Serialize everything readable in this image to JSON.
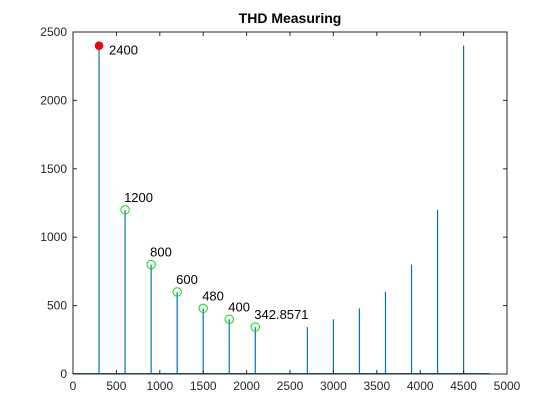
{
  "chart_data": {
    "type": "line",
    "title": "THD Measuring",
    "xlabel": "",
    "ylabel": "",
    "xlim": [
      0,
      5000
    ],
    "ylim": [
      0,
      2500
    ],
    "xticks": [
      0,
      500,
      1000,
      1500,
      2000,
      2500,
      3000,
      3500,
      4000,
      4500,
      5000
    ],
    "yticks": [
      0,
      500,
      1000,
      1500,
      2000,
      2500
    ],
    "grid": false,
    "series": [
      {
        "type": "stem",
        "color": "#0072BD",
        "x": [
          300,
          600,
          900,
          1200,
          1500,
          1800,
          2100,
          2700,
          3000,
          3300,
          3600,
          3900,
          4200,
          4500
        ],
        "y": [
          2400,
          1200,
          800,
          600,
          480,
          400,
          342.8571,
          342.8571,
          400,
          480,
          600,
          800,
          1200,
          2400
        ]
      }
    ],
    "fundamental_marker": {
      "x": 300,
      "y": 2400,
      "label": "2400",
      "color": "#FF0000"
    },
    "harmonic_markers": {
      "color": "#00DD00",
      "points": [
        {
          "x": 600,
          "y": 1200,
          "label": "1200"
        },
        {
          "x": 900,
          "y": 800,
          "label": "800"
        },
        {
          "x": 1200,
          "y": 600,
          "label": "600"
        },
        {
          "x": 1500,
          "y": 480,
          "label": "480"
        },
        {
          "x": 1800,
          "y": 400,
          "label": "400"
        },
        {
          "x": 2100,
          "y": 342.8571,
          "label": "342.8571"
        }
      ]
    }
  }
}
